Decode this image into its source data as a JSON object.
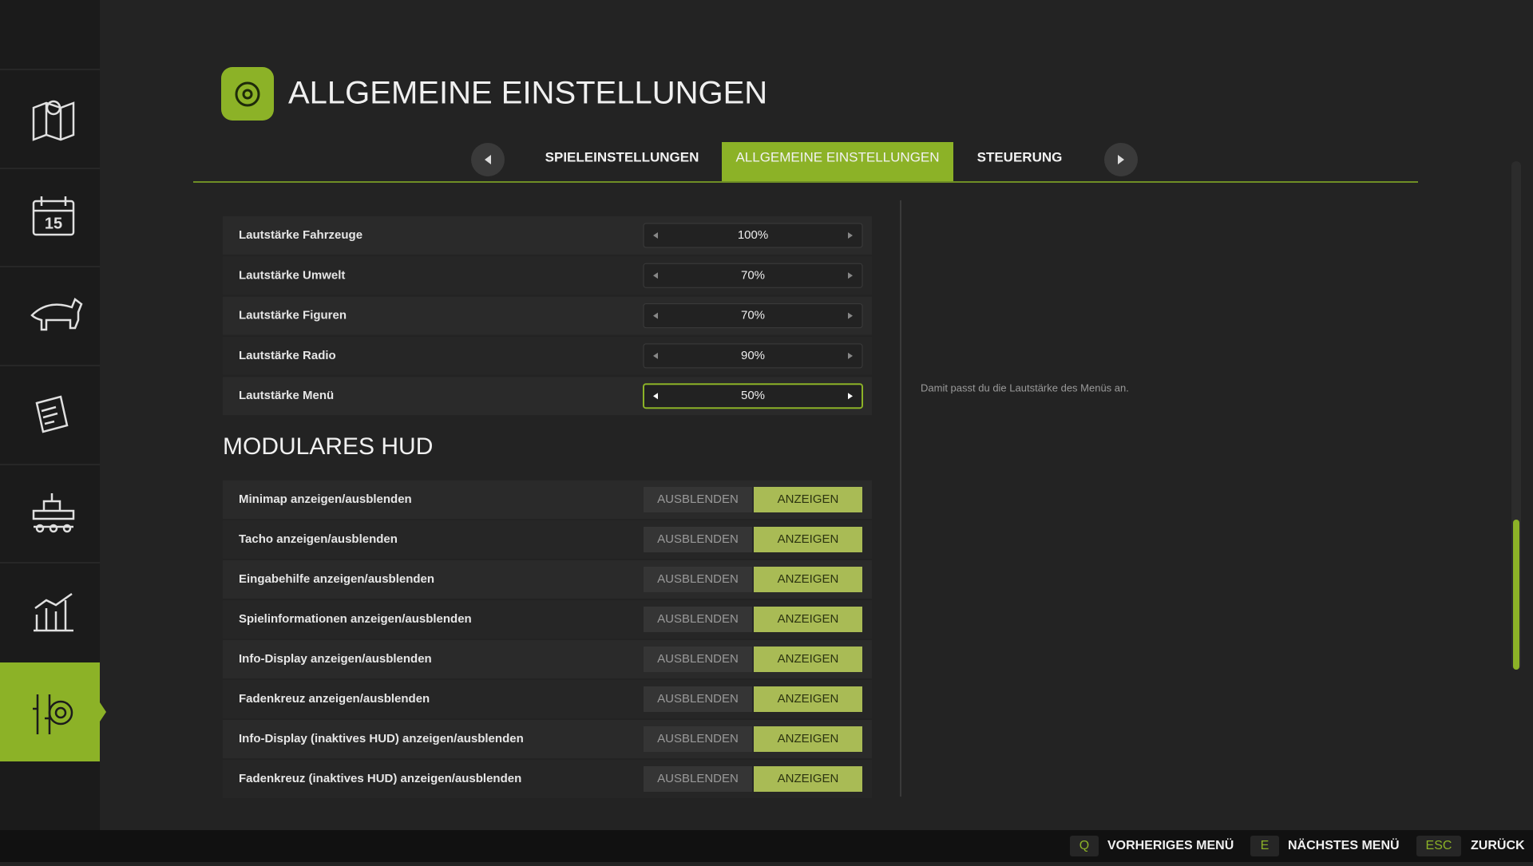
{
  "header": {
    "title": "ALLGEMEINE EINSTELLUNGEN"
  },
  "tabs": [
    "SPIELEINSTELLUNGEN",
    "ALLGEMEINE EINSTELLUNGEN",
    "STEUERUNG"
  ],
  "settings": [
    {
      "label": "Lautstärke Fahrzeuge",
      "value": "100%"
    },
    {
      "label": "Lautstärke Umwelt",
      "value": "70%"
    },
    {
      "label": "Lautstärke Figuren",
      "value": "70%"
    },
    {
      "label": "Lautstärke Radio",
      "value": "90%"
    },
    {
      "label": "Lautstärke Menü",
      "value": "50%"
    }
  ],
  "section_title": "MODULARES HUD",
  "hud": {
    "off": "AUSBLENDEN",
    "on": "ANZEIGEN",
    "rows": [
      "Minimap anzeigen/ausblenden",
      "Tacho anzeigen/ausblenden",
      "Eingabehilfe anzeigen/ausblenden",
      "Spielinformationen anzeigen/ausblenden",
      "Info-Display anzeigen/ausblenden",
      "Fadenkreuz anzeigen/ausblenden",
      "Info-Display (inaktives HUD) anzeigen/ausblenden",
      "Fadenkreuz (inaktives HUD) anzeigen/ausblenden"
    ]
  },
  "description": "Damit passt du die Lautstärke des Menüs an.",
  "footer": [
    {
      "key": "Q",
      "label": "VORHERIGES MENÜ"
    },
    {
      "key": "E",
      "label": "NÄCHSTES MENÜ"
    },
    {
      "key": "ESC",
      "label": "ZURÜCK"
    }
  ]
}
